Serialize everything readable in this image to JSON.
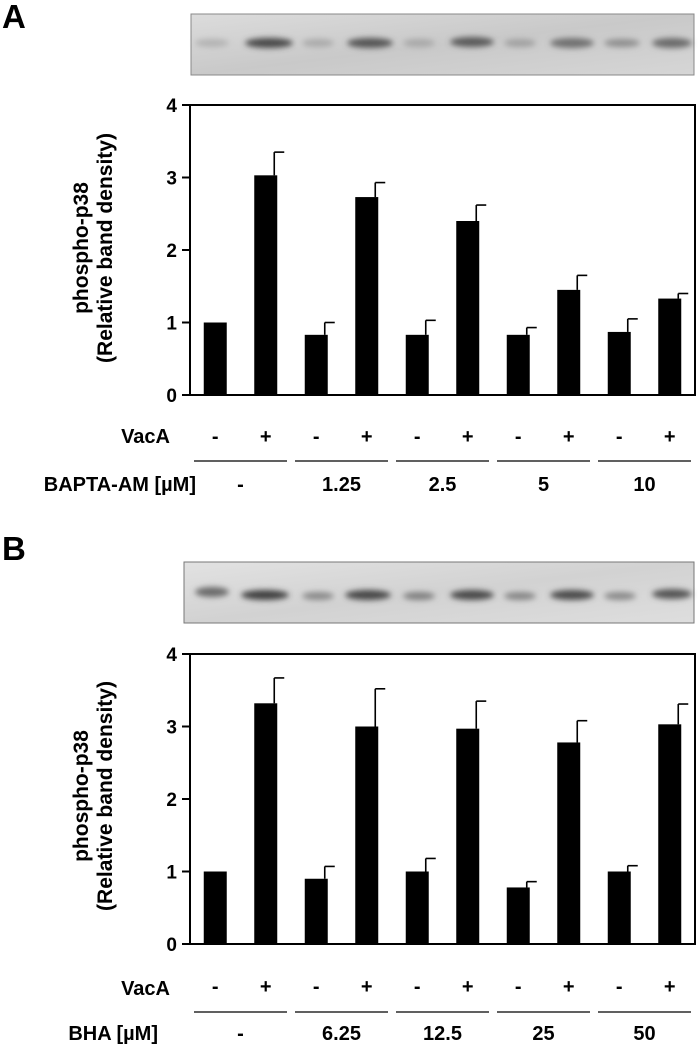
{
  "panels": [
    {
      "letter": "A",
      "ylabel": [
        "phospho-p38",
        "(Relative band density)"
      ],
      "row_labels": [
        "VacA",
        "BAPTA-AM [µM]"
      ],
      "vaca_signs": [
        "-",
        "+",
        "-",
        "+",
        "-",
        "+",
        "-",
        "+",
        "-",
        "+"
      ],
      "dose_labels": [
        "-",
        "1.25",
        "2.5",
        "5",
        "10"
      ]
    },
    {
      "letter": "B",
      "ylabel": [
        "phospho-p38",
        "(Relative band density)"
      ],
      "row_labels": [
        "VacA",
        "BHA [µM]"
      ],
      "vaca_signs": [
        "-",
        "+",
        "-",
        "+",
        "-",
        "+",
        "-",
        "+",
        "-",
        "+"
      ],
      "dose_labels": [
        "-",
        "6.25",
        "12.5",
        "25",
        "50"
      ]
    }
  ],
  "chart_data": [
    {
      "type": "bar",
      "categories": [
        "-/-",
        "+/-",
        "-/1.25",
        "+/1.25",
        "-/2.5",
        "+/2.5",
        "-/5",
        "+/5",
        "-/10",
        "+/10"
      ],
      "values": [
        1.0,
        3.03,
        0.83,
        2.73,
        0.83,
        2.4,
        0.83,
        1.45,
        0.87,
        1.33
      ],
      "errors": [
        0,
        0.32,
        0.17,
        0.2,
        0.2,
        0.22,
        0.1,
        0.2,
        0.18,
        0.07
      ],
      "ylim": [
        0,
        4
      ],
      "yticks": [
        "0",
        "1",
        "2",
        "3",
        "4"
      ],
      "color": "#000000"
    },
    {
      "type": "bar",
      "categories": [
        "-/-",
        "+/-",
        "-/6.25",
        "+/6.25",
        "-/12.5",
        "+/12.5",
        "-/25",
        "+/25",
        "-/50",
        "+/50"
      ],
      "values": [
        1.0,
        3.32,
        0.9,
        3.0,
        1.0,
        2.97,
        0.78,
        2.78,
        1.0,
        3.03
      ],
      "errors": [
        0,
        0.35,
        0.17,
        0.52,
        0.18,
        0.38,
        0.08,
        0.3,
        0.08,
        0.28
      ],
      "ylim": [
        0,
        4
      ],
      "yticks": [
        "0",
        "1",
        "2",
        "3",
        "4"
      ],
      "color": "#000000"
    }
  ]
}
